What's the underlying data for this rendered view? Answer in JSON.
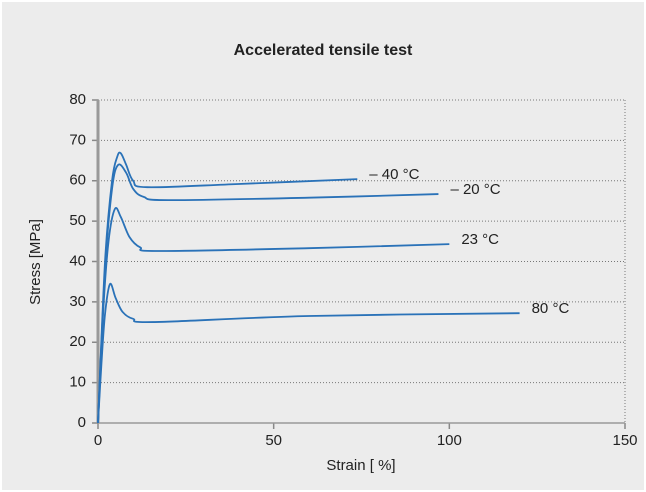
{
  "chart_data": {
    "type": "line",
    "title": "Accelerated tensile test",
    "x_label": "Strain [ %]",
    "y_label": "Stress [MPa]",
    "xlim": [
      0,
      150
    ],
    "xticks": [
      0,
      50,
      100,
      150
    ],
    "ylim": [
      0,
      80
    ],
    "yticks": [
      0,
      10,
      20,
      30,
      40,
      50,
      60,
      70,
      80
    ],
    "grid": true,
    "series": [
      {
        "name": "– 40 °C",
        "color": "#2a72b8",
        "x": [
          0,
          2,
          4,
          5.5,
          6.5,
          8,
          10,
          14,
          40,
          73.8
        ],
        "values": [
          0,
          40,
          60,
          66,
          66.8,
          64,
          60,
          58.4,
          59.2,
          60.4
        ]
      },
      {
        "name": "– 20 °C",
        "color": "#2a72b8",
        "x": [
          0,
          2,
          4,
          5.7,
          8,
          10,
          13,
          20,
          60,
          96.9
        ],
        "values": [
          0,
          38,
          58,
          63.9,
          62,
          58,
          56,
          55.2,
          55.8,
          56.7
        ]
      },
      {
        "name": "23 °C",
        "color": "#2a72b8",
        "x": [
          0,
          1.5,
          3,
          4.8,
          6.5,
          9,
          12,
          17,
          60,
          100
        ],
        "values": [
          0,
          28,
          45,
          53,
          51,
          46,
          43.5,
          42.6,
          43.3,
          44.3
        ]
      },
      {
        "name": "80 °C",
        "color": "#2a72b8",
        "x": [
          0,
          1,
          2,
          3.4,
          5,
          7,
          10,
          15.7,
          60,
          120
        ],
        "values": [
          0,
          15,
          27,
          34.4,
          31,
          27.5,
          25.8,
          25,
          26.5,
          27.2
        ]
      }
    ]
  }
}
